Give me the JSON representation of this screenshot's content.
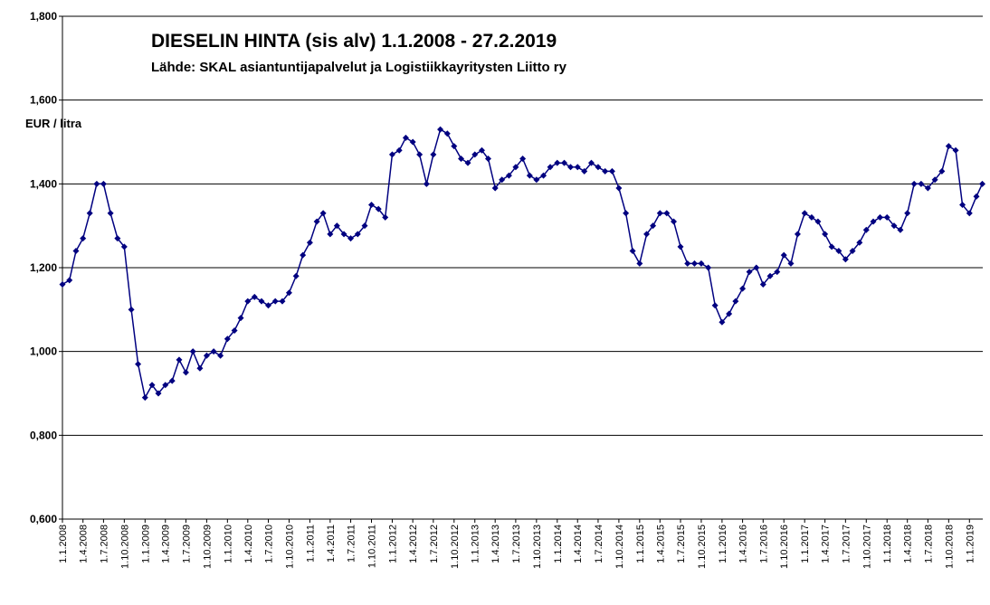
{
  "chart_data": {
    "type": "line",
    "title": "DIESELIN HINTA (sis alv) 1.1.2008 -  27.2.2019",
    "subtitle": "Lähde: SKAL asiantuntijapalvelut ja Logistiikkayritysten Liitto ry",
    "y_label": "EUR / litra",
    "x": [
      "1.1.2008",
      "1.2.2008",
      "1.3.2008",
      "1.4.2008",
      "1.5.2008",
      "1.6.2008",
      "1.7.2008",
      "1.8.2008",
      "1.9.2008",
      "1.10.2008",
      "1.11.2008",
      "1.12.2008",
      "1.1.2009",
      "1.2.2009",
      "1.3.2009",
      "1.4.2009",
      "1.5.2009",
      "1.6.2009",
      "1.7.2009",
      "1.8.2009",
      "1.9.2009",
      "1.10.2009",
      "1.11.2009",
      "1.12.2009",
      "1.1.2010",
      "1.2.2010",
      "1.3.2010",
      "1.4.2010",
      "1.5.2010",
      "1.6.2010",
      "1.7.2010",
      "1.8.2010",
      "1.9.2010",
      "1.10.2010",
      "1.11.2010",
      "1.12.2010",
      "1.1.2011",
      "1.2.2011",
      "1.3.2011",
      "1.4.2011",
      "1.5.2011",
      "1.6.2011",
      "1.7.2011",
      "1.8.2011",
      "1.9.2011",
      "1.10.2011",
      "1.11.2011",
      "1.12.2011",
      "1.1.2012",
      "1.2.2012",
      "1.3.2012",
      "1.4.2012",
      "1.5.2012",
      "1.6.2012",
      "1.7.2012",
      "1.8.2012",
      "1.9.2012",
      "1.10.2012",
      "1.11.2012",
      "1.12.2012",
      "1.1.2013",
      "1.2.2013",
      "1.3.2013",
      "1.4.2013",
      "1.5.2013",
      "1.6.2013",
      "1.7.2013",
      "1.8.2013",
      "1.9.2013",
      "1.10.2013",
      "1.11.2013",
      "1.12.2013",
      "1.1.2014",
      "1.2.2014",
      "1.3.2014",
      "1.4.2014",
      "1.5.2014",
      "1.6.2014",
      "1.7.2014",
      "1.8.2014",
      "1.9.2014",
      "1.10.2014",
      "1.11.2014",
      "1.12.2014",
      "1.1.2015",
      "1.2.2015",
      "1.3.2015",
      "1.4.2015",
      "1.5.2015",
      "1.6.2015",
      "1.7.2015",
      "1.8.2015",
      "1.9.2015",
      "1.10.2015",
      "1.11.2015",
      "1.12.2015",
      "1.1.2016",
      "1.2.2016",
      "1.3.2016",
      "1.4.2016",
      "1.5.2016",
      "1.6.2016",
      "1.7.2016",
      "1.8.2016",
      "1.9.2016",
      "1.10.2016",
      "1.11.2016",
      "1.12.2016",
      "1.1.2017",
      "1.2.2017",
      "1.3.2017",
      "1.4.2017",
      "1.5.2017",
      "1.6.2017",
      "1.7.2017",
      "1.8.2017",
      "1.9.2017",
      "1.10.2017",
      "1.11.2017",
      "1.12.2017",
      "1.1.2018",
      "1.2.2018",
      "1.3.2018",
      "1.4.2018",
      "1.5.2018",
      "1.6.2018",
      "1.7.2018",
      "1.8.2018",
      "1.9.2018",
      "1.10.2018",
      "1.11.2018",
      "1.12.2018",
      "1.1.2019",
      "1.2.2019",
      "27.2.2019"
    ],
    "series": [
      {
        "color": "#000080",
        "values": [
          1.16,
          1.17,
          1.24,
          1.27,
          1.33,
          1.4,
          1.4,
          1.33,
          1.27,
          1.25,
          1.1,
          0.97,
          0.89,
          0.92,
          0.9,
          0.92,
          0.93,
          0.98,
          0.95,
          1.0,
          0.96,
          0.99,
          1.0,
          0.99,
          1.03,
          1.05,
          1.08,
          1.12,
          1.13,
          1.12,
          1.11,
          1.12,
          1.12,
          1.14,
          1.18,
          1.23,
          1.26,
          1.31,
          1.33,
          1.28,
          1.3,
          1.28,
          1.27,
          1.28,
          1.3,
          1.35,
          1.34,
          1.32,
          1.47,
          1.48,
          1.51,
          1.5,
          1.47,
          1.4,
          1.47,
          1.53,
          1.52,
          1.49,
          1.46,
          1.45,
          1.47,
          1.48,
          1.46,
          1.39,
          1.41,
          1.42,
          1.44,
          1.46,
          1.42,
          1.41,
          1.42,
          1.44,
          1.45,
          1.45,
          1.44,
          1.44,
          1.43,
          1.45,
          1.44,
          1.43,
          1.43,
          1.39,
          1.33,
          1.24,
          1.21,
          1.28,
          1.3,
          1.33,
          1.33,
          1.31,
          1.25,
          1.21,
          1.21,
          1.21,
          1.2,
          1.11,
          1.07,
          1.09,
          1.12,
          1.15,
          1.19,
          1.2,
          1.16,
          1.18,
          1.19,
          1.23,
          1.21,
          1.28,
          1.33,
          1.32,
          1.31,
          1.28,
          1.25,
          1.24,
          1.22,
          1.24,
          1.26,
          1.29,
          1.31,
          1.32,
          1.32,
          1.3,
          1.29,
          1.33,
          1.4,
          1.4,
          1.39,
          1.41,
          1.43,
          1.49,
          1.48,
          1.35,
          1.33,
          1.37,
          1.4
        ]
      }
    ],
    "xlim": [
      "1.1.2008",
      "1.3.2019"
    ],
    "xticks": [
      "1.1.2008",
      "1.4.2008",
      "1.7.2008",
      "1.10.2008",
      "1.1.2009",
      "1.4.2009",
      "1.7.2009",
      "1.10.2009",
      "1.1.2010",
      "1.4.2010",
      "1.7.2010",
      "1.10.2010",
      "1.1.2011",
      "1.4.2011",
      "1.7.2011",
      "1.10.2011",
      "1.1.2012",
      "1.4.2012",
      "1.7.2012",
      "1.10.2012",
      "1.1.2013",
      "1.4.2013",
      "1.7.2013",
      "1.10.2013",
      "1.1.2014",
      "1.4.2014",
      "1.7.2014",
      "1.10.2014",
      "1.1.2015",
      "1.4.2015",
      "1.7.2015",
      "1.10.2015",
      "1.1.2016",
      "1.4.2016",
      "1.7.2016",
      "1.10.2016",
      "1.1.2017",
      "1.4.2017",
      "1.7.2017",
      "1.10.2017",
      "1.1.2018",
      "1.4.2018",
      "1.7.2018",
      "1.10.2018",
      "1.1.2019"
    ],
    "ylim": [
      0.6,
      1.8
    ],
    "yticks": [
      {
        "value": 0.6,
        "label": "0,600"
      },
      {
        "value": 0.8,
        "label": "0,800"
      },
      {
        "value": 1.0,
        "label": "1,000"
      },
      {
        "value": 1.2,
        "label": "1,200"
      },
      {
        "value": 1.4,
        "label": "1,400"
      },
      {
        "value": 1.6,
        "label": "1,600"
      },
      {
        "value": 1.8,
        "label": "1,800"
      }
    ],
    "grid": true
  }
}
